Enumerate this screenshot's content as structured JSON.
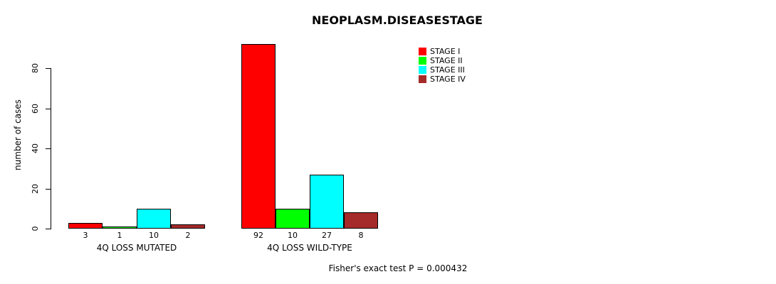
{
  "page": {
    "background": "#FFFFFF"
  },
  "chart_data": {
    "type": "bar",
    "title": "NEOPLASM.DISEASESTAGE",
    "ylabel": "number of cases",
    "xlabel": "",
    "ylim": [
      0,
      80
    ],
    "yticks": [
      0,
      20,
      40,
      60,
      80
    ],
    "grid": false,
    "legend_position": "top-right",
    "categories": [
      "4Q LOSS MUTATED",
      "4Q LOSS WILD-TYPE"
    ],
    "series": [
      {
        "name": "STAGE I",
        "color": "#FF0000",
        "values": [
          3,
          92
        ]
      },
      {
        "name": "STAGE II",
        "color": "#00FF00",
        "values": [
          1,
          10
        ]
      },
      {
        "name": "STAGE III",
        "color": "#00FFFF",
        "values": [
          10,
          27
        ]
      },
      {
        "name": "STAGE IV",
        "color": "#A52A2A",
        "values": [
          2,
          8
        ]
      }
    ],
    "bar_value_labels": [
      [
        "3",
        "1",
        "10",
        "2"
      ],
      [
        "92",
        "10",
        "27",
        "8"
      ]
    ],
    "axis_color": "#000000",
    "footer": "Fisher's exact test P = 0.000432"
  }
}
